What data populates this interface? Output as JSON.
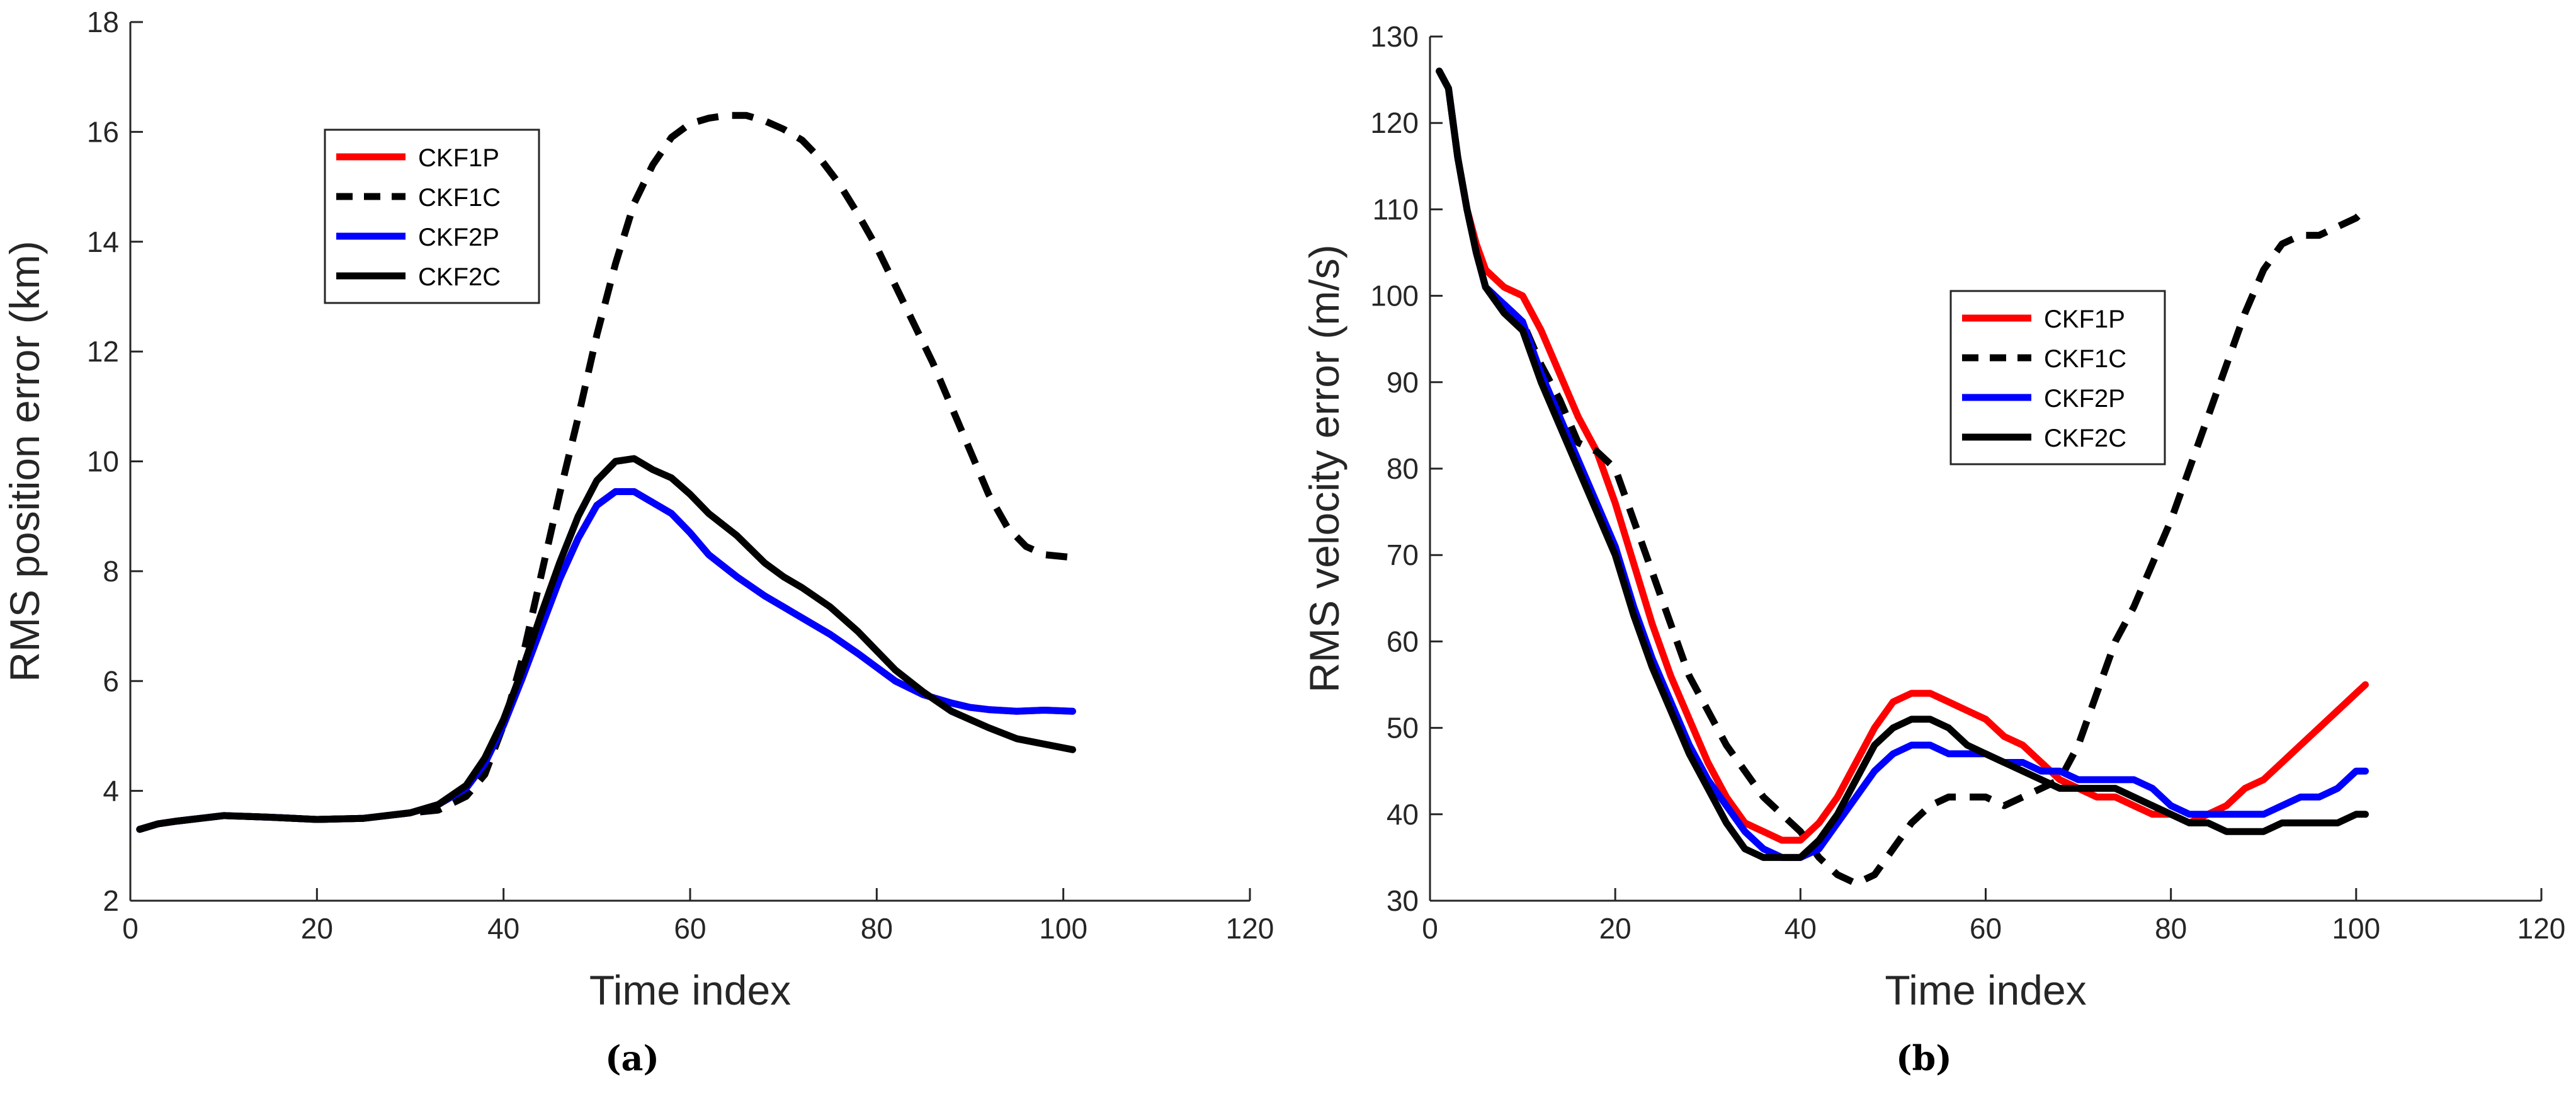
{
  "chart_data": [
    {
      "type": "line",
      "panel_label": "(a)",
      "title": "",
      "xlabel": "Time index",
      "ylabel": "RMS position error (km)",
      "xlim": [
        0,
        120
      ],
      "ylim": [
        2,
        18
      ],
      "xticks": [
        0,
        20,
        40,
        60,
        80,
        100,
        120
      ],
      "yticks": [
        2,
        4,
        6,
        8,
        10,
        12,
        14,
        16,
        18
      ],
      "grid": false,
      "legend_position": "upper-left",
      "series": [
        {
          "name": "CKF1P",
          "color": "#ff0000",
          "dash": "solid",
          "x": [
            1,
            3,
            5,
            10,
            15,
            20,
            25,
            30,
            33,
            36,
            38,
            40,
            42,
            44,
            46,
            48,
            50,
            52,
            54,
            56,
            58,
            60,
            62,
            65,
            68,
            70,
            72,
            75,
            78,
            80,
            82,
            85,
            88,
            90,
            92,
            95,
            98,
            101
          ],
          "y": [
            3.3,
            3.4,
            3.45,
            3.55,
            3.52,
            3.48,
            3.5,
            3.6,
            3.75,
            4.05,
            4.5,
            5.2,
            6.05,
            6.95,
            7.85,
            8.6,
            9.2,
            9.45,
            9.45,
            9.25,
            9.05,
            8.7,
            8.3,
            7.9,
            7.55,
            7.35,
            7.15,
            6.85,
            6.5,
            6.25,
            6.0,
            5.75,
            5.6,
            5.52,
            5.48,
            5.45,
            5.47,
            5.45
          ]
        },
        {
          "name": "CKF1C",
          "color": "#000000",
          "dash": "dashed",
          "x": [
            1,
            3,
            5,
            10,
            15,
            20,
            25,
            30,
            33,
            36,
            38,
            40,
            42,
            44,
            46,
            48,
            50,
            52,
            54,
            56,
            58,
            60,
            62,
            64,
            66,
            68,
            70,
            72,
            74,
            76,
            78,
            80,
            82,
            84,
            86,
            88,
            90,
            92,
            94,
            96,
            98,
            101
          ],
          "y": [
            3.3,
            3.4,
            3.45,
            3.55,
            3.52,
            3.48,
            3.5,
            3.6,
            3.65,
            3.9,
            4.3,
            5.2,
            6.4,
            7.9,
            9.4,
            10.8,
            12.3,
            13.6,
            14.7,
            15.4,
            15.9,
            16.15,
            16.25,
            16.3,
            16.3,
            16.2,
            16.05,
            15.85,
            15.5,
            15.05,
            14.5,
            13.9,
            13.2,
            12.5,
            11.8,
            11.0,
            10.2,
            9.4,
            8.8,
            8.45,
            8.3,
            8.25
          ]
        },
        {
          "name": "CKF2P",
          "color": "#0000ff",
          "dash": "solid",
          "x": [
            1,
            3,
            5,
            10,
            15,
            20,
            25,
            30,
            33,
            36,
            38,
            40,
            42,
            44,
            46,
            48,
            50,
            52,
            54,
            56,
            58,
            60,
            62,
            65,
            68,
            70,
            72,
            75,
            78,
            80,
            82,
            85,
            88,
            90,
            92,
            95,
            98,
            101
          ],
          "y": [
            3.3,
            3.4,
            3.45,
            3.55,
            3.52,
            3.48,
            3.5,
            3.6,
            3.75,
            4.05,
            4.5,
            5.2,
            6.05,
            6.95,
            7.85,
            8.6,
            9.2,
            9.45,
            9.45,
            9.25,
            9.05,
            8.7,
            8.3,
            7.9,
            7.55,
            7.35,
            7.15,
            6.85,
            6.5,
            6.25,
            6.0,
            5.75,
            5.6,
            5.52,
            5.48,
            5.45,
            5.47,
            5.45
          ]
        },
        {
          "name": "CKF2C",
          "color": "#000000",
          "dash": "solid",
          "x": [
            1,
            3,
            5,
            10,
            15,
            20,
            25,
            30,
            33,
            36,
            38,
            40,
            42,
            44,
            46,
            48,
            50,
            52,
            54,
            56,
            58,
            60,
            62,
            65,
            68,
            70,
            72,
            75,
            78,
            80,
            82,
            85,
            88,
            90,
            92,
            95,
            98,
            101
          ],
          "y": [
            3.3,
            3.4,
            3.45,
            3.55,
            3.52,
            3.48,
            3.5,
            3.6,
            3.75,
            4.1,
            4.6,
            5.3,
            6.2,
            7.2,
            8.15,
            9.0,
            9.65,
            10.0,
            10.05,
            9.85,
            9.7,
            9.4,
            9.05,
            8.65,
            8.15,
            7.9,
            7.7,
            7.35,
            6.9,
            6.55,
            6.2,
            5.8,
            5.45,
            5.3,
            5.15,
            4.95,
            4.85,
            4.75
          ]
        }
      ]
    },
    {
      "type": "line",
      "panel_label": "(b)",
      "title": "",
      "xlabel": "Time index",
      "ylabel": "RMS velocity error (m/s)",
      "xlim": [
        0,
        120
      ],
      "ylim": [
        30,
        130
      ],
      "xticks": [
        0,
        20,
        40,
        60,
        80,
        100,
        120
      ],
      "yticks": [
        30,
        40,
        50,
        60,
        70,
        80,
        90,
        100,
        110,
        120,
        130
      ],
      "grid": false,
      "legend_position": "center-right",
      "series": [
        {
          "name": "CKF1P",
          "color": "#ff0000",
          "dash": "solid",
          "x": [
            1,
            2,
            3,
            4,
            5,
            6,
            8,
            10,
            12,
            14,
            16,
            18,
            20,
            22,
            24,
            26,
            28,
            30,
            32,
            34,
            36,
            38,
            40,
            42,
            44,
            46,
            48,
            50,
            52,
            54,
            56,
            58,
            60,
            62,
            64,
            66,
            68,
            70,
            72,
            74,
            76,
            78,
            80,
            82,
            84,
            86,
            88,
            90,
            92,
            94,
            96,
            98,
            100,
            101
          ],
          "y": [
            126,
            124,
            116,
            110,
            106,
            103,
            101,
            100,
            96,
            91,
            86,
            82,
            76,
            69,
            62,
            56,
            51,
            46,
            42,
            39,
            38,
            37,
            37,
            39,
            42,
            46,
            50,
            53,
            54,
            54,
            53,
            52,
            51,
            49,
            48,
            46,
            44,
            43,
            42,
            42,
            41,
            40,
            40,
            39,
            40,
            41,
            43,
            44,
            46,
            48,
            50,
            52,
            54,
            55
          ]
        },
        {
          "name": "CKF1C",
          "color": "#000000",
          "dash": "dashed",
          "x": [
            1,
            2,
            3,
            4,
            5,
            6,
            8,
            10,
            12,
            14,
            16,
            18,
            20,
            22,
            24,
            26,
            28,
            30,
            32,
            34,
            36,
            38,
            40,
            42,
            44,
            46,
            48,
            50,
            52,
            54,
            56,
            58,
            60,
            62,
            64,
            66,
            68,
            70,
            72,
            74,
            76,
            78,
            80,
            82,
            84,
            86,
            88,
            90,
            92,
            94,
            96,
            98,
            100,
            101
          ],
          "y": [
            126,
            124,
            116,
            110,
            105,
            101,
            99,
            97,
            92,
            88,
            83,
            82,
            80,
            74,
            68,
            62,
            56,
            52,
            48,
            45,
            42,
            40,
            38,
            35,
            33,
            32,
            33,
            36,
            39,
            41,
            42,
            42,
            42,
            41,
            42,
            43,
            44,
            48,
            54,
            60,
            64,
            69,
            74,
            80,
            86,
            92,
            98,
            103,
            106,
            107,
            107,
            108,
            109,
            110
          ]
        },
        {
          "name": "CKF2P",
          "color": "#0000ff",
          "dash": "solid",
          "x": [
            1,
            2,
            3,
            4,
            5,
            6,
            8,
            10,
            12,
            14,
            16,
            18,
            20,
            22,
            24,
            26,
            28,
            30,
            32,
            34,
            36,
            38,
            40,
            42,
            44,
            46,
            48,
            50,
            52,
            54,
            56,
            58,
            60,
            62,
            64,
            66,
            68,
            70,
            72,
            74,
            76,
            78,
            80,
            82,
            84,
            86,
            88,
            90,
            92,
            94,
            96,
            98,
            100,
            101
          ],
          "y": [
            126,
            124,
            116,
            110,
            105,
            101,
            99,
            97,
            91,
            86,
            81,
            76,
            71,
            64,
            58,
            53,
            48,
            44,
            41,
            38,
            36,
            35,
            35,
            36,
            39,
            42,
            45,
            47,
            48,
            48,
            47,
            47,
            47,
            46,
            46,
            45,
            45,
            44,
            44,
            44,
            44,
            43,
            41,
            40,
            40,
            40,
            40,
            40,
            41,
            42,
            42,
            43,
            45,
            45
          ]
        },
        {
          "name": "CKF2C",
          "color": "#000000",
          "dash": "solid",
          "x": [
            1,
            2,
            3,
            4,
            5,
            6,
            8,
            10,
            12,
            14,
            16,
            18,
            20,
            22,
            24,
            26,
            28,
            30,
            32,
            34,
            36,
            38,
            40,
            42,
            44,
            46,
            48,
            50,
            52,
            54,
            56,
            58,
            60,
            62,
            64,
            66,
            68,
            70,
            72,
            74,
            76,
            78,
            80,
            82,
            84,
            86,
            88,
            90,
            92,
            94,
            96,
            98,
            100,
            101
          ],
          "y": [
            126,
            124,
            116,
            110,
            105,
            101,
            98,
            96,
            90,
            85,
            80,
            75,
            70,
            63,
            57,
            52,
            47,
            43,
            39,
            36,
            35,
            35,
            35,
            37,
            40,
            44,
            48,
            50,
            51,
            51,
            50,
            48,
            47,
            46,
            45,
            44,
            43,
            43,
            43,
            43,
            42,
            41,
            40,
            39,
            39,
            38,
            38,
            38,
            39,
            39,
            39,
            39,
            40,
            40
          ]
        }
      ]
    }
  ]
}
